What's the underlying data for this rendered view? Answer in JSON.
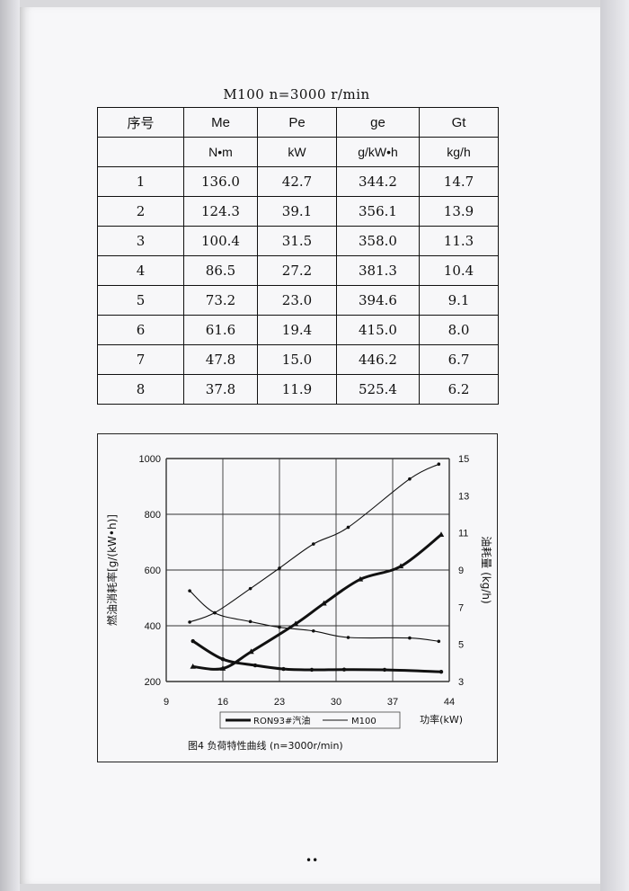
{
  "table": {
    "title": "M100  n=3000 r/min",
    "headers": [
      "序号",
      "Me",
      "Pe",
      "ge",
      "Gt"
    ],
    "units": [
      "",
      "N•m",
      "kW",
      "g/kW•h",
      "kg/h"
    ],
    "rows": [
      [
        "1",
        "136.0",
        "42.7",
        "344.2",
        "14.7"
      ],
      [
        "2",
        "124.3",
        "39.1",
        "356.1",
        "13.9"
      ],
      [
        "3",
        "100.4",
        "31.5",
        "358.0",
        "11.3"
      ],
      [
        "4",
        "86.5",
        "27.2",
        "381.3",
        "10.4"
      ],
      [
        "5",
        "73.2",
        "23.0",
        "394.6",
        "9.1"
      ],
      [
        "6",
        "61.6",
        "19.4",
        "415.0",
        "8.0"
      ],
      [
        "7",
        "47.8",
        "15.0",
        "446.2",
        "6.7"
      ],
      [
        "8",
        "37.8",
        "11.9",
        "525.4",
        "6.2"
      ]
    ]
  },
  "chart_data": {
    "type": "line",
    "caption": "图4   负荷特性曲线    (n=3000r/min)",
    "xlabel": "功率(kW)",
    "ylabel_left": "燃油消耗率[g/(kW•h)]",
    "ylabel_right": "油耗量 (kg/h)",
    "x_ticks": [
      9,
      16,
      23,
      30,
      37,
      44
    ],
    "xlim": [
      9,
      44
    ],
    "y_left_ticks": [
      200,
      400,
      600,
      800,
      1000
    ],
    "y_left_lim": [
      200,
      1000
    ],
    "y_right_ticks": [
      3,
      5,
      7,
      9,
      11,
      13,
      15
    ],
    "y_right_lim": [
      3,
      15
    ],
    "grid": true,
    "legend_position": "bottom-center",
    "legend": [
      {
        "label": "RON93#汽油",
        "style": "thick"
      },
      {
        "label": "M100",
        "style": "thin"
      }
    ],
    "series": [
      {
        "name": "RON93#汽油",
        "kind": "ge",
        "axis": "left",
        "x": [
          12.3,
          16.0,
          20.0,
          23.5,
          27.0,
          31.0,
          36.0,
          43.0
        ],
        "y": [
          345,
          280,
          258,
          245,
          242,
          243,
          242,
          235
        ]
      },
      {
        "name": "RON93#汽油",
        "kind": "Gt",
        "axis": "right",
        "x": [
          12.3,
          16.0,
          19.5,
          25.0,
          28.5,
          33.0,
          38.0,
          43.0
        ],
        "y": [
          3.8,
          3.7,
          4.6,
          6.1,
          7.2,
          8.5,
          9.2,
          10.9
        ]
      },
      {
        "name": "M100",
        "kind": "ge",
        "axis": "left",
        "x": [
          11.9,
          15.0,
          19.4,
          23.0,
          27.2,
          31.5,
          39.1,
          42.7
        ],
        "y": [
          525.4,
          446.2,
          415.0,
          394.6,
          381.3,
          358.0,
          356.1,
          344.2
        ]
      },
      {
        "name": "M100",
        "kind": "Gt",
        "axis": "right",
        "x": [
          11.9,
          15.0,
          19.4,
          23.0,
          27.2,
          31.5,
          39.1,
          42.7
        ],
        "y": [
          6.2,
          6.7,
          8.0,
          9.1,
          10.4,
          11.3,
          13.9,
          14.7
        ]
      }
    ]
  },
  "page_mark": "••"
}
